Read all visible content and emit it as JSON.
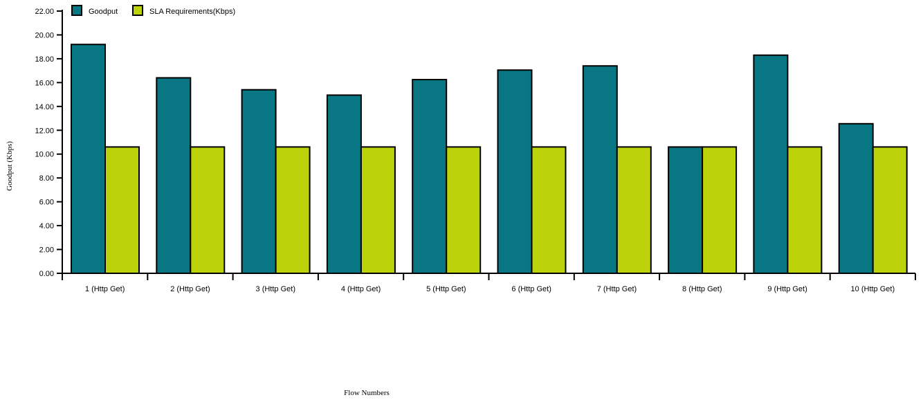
{
  "chart_data": {
    "type": "bar",
    "title": "",
    "xlabel": "Flow Numbers",
    "ylabel": "Goodput (Kbps)",
    "ylim": [
      0,
      22
    ],
    "yticks": [
      "0.00",
      "2.00",
      "4.00",
      "6.00",
      "8.00",
      "10.00",
      "12.00",
      "14.00",
      "16.00",
      "18.00",
      "20.00",
      "22.00"
    ],
    "categories": [
      "1 (Http Get)",
      "2 (Http Get)",
      "3 (Http Get)",
      "4 (Http Get)",
      "5 (Http Get)",
      "6 (Http Get)",
      "7 (Http Get)",
      "8 (Http Get)",
      "9 (Http Get)",
      "10 (Http Get)"
    ],
    "series": [
      {
        "name": "Goodput",
        "color": "#087783",
        "values": [
          19.2,
          16.4,
          15.4,
          14.95,
          16.25,
          17.05,
          17.4,
          10.6,
          18.3,
          12.55
        ]
      },
      {
        "name": "SLA Requirements(Kbps)",
        "color": "#bcd30b",
        "values": [
          10.6,
          10.6,
          10.6,
          10.6,
          10.6,
          10.6,
          10.6,
          10.6,
          10.6,
          10.6
        ]
      }
    ],
    "legend_position": "top-left",
    "grid": false
  }
}
